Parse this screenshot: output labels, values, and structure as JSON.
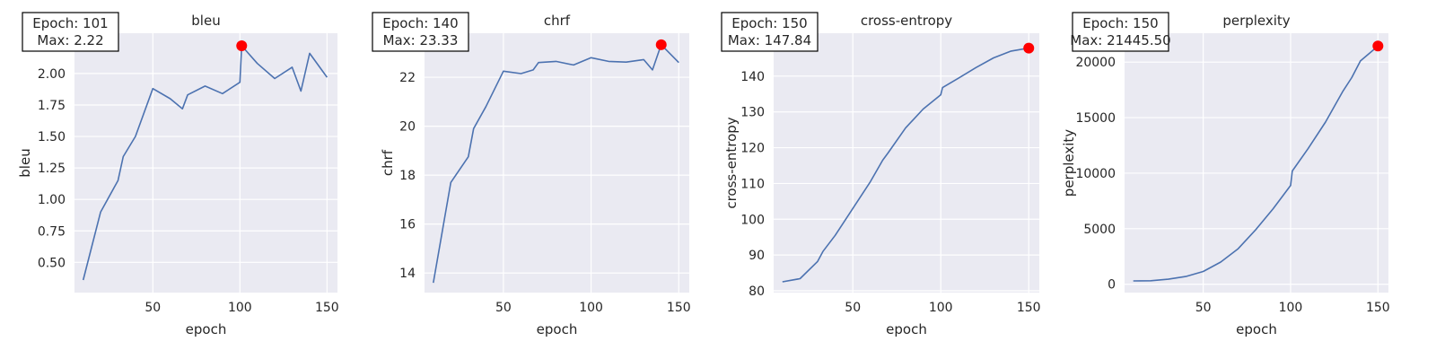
{
  "chart_data": [
    {
      "type": "line",
      "title": "bleu",
      "xlabel": "epoch",
      "ylabel": "bleu",
      "xlim": [
        5,
        156
      ],
      "ylim": [
        0.26,
        2.32
      ],
      "xticks": [
        50,
        100,
        150
      ],
      "yticks": [
        0.5,
        0.75,
        1.0,
        1.25,
        1.5,
        1.75,
        2.0
      ],
      "ytick_labels": [
        "0.50",
        "0.75",
        "1.00",
        "1.25",
        "1.50",
        "1.75",
        "2.00"
      ],
      "grid": true,
      "x": [
        10,
        20,
        30,
        33,
        40,
        50,
        60,
        67,
        70,
        80,
        90,
        100,
        101,
        110,
        120,
        130,
        135,
        140,
        150
      ],
      "y": [
        0.36,
        0.9,
        1.15,
        1.34,
        1.5,
        1.88,
        1.8,
        1.72,
        1.83,
        1.9,
        1.84,
        1.93,
        2.22,
        2.08,
        1.96,
        2.05,
        1.86,
        2.16,
        1.97
      ],
      "max_point": {
        "x": 101,
        "y": 2.22
      },
      "annotation": {
        "line1": "Epoch: 101",
        "line2": "Max: 2.22"
      }
    },
    {
      "type": "line",
      "title": "chrf",
      "xlabel": "epoch",
      "ylabel": "chrf",
      "xlim": [
        5,
        156
      ],
      "ylim": [
        13.2,
        23.8
      ],
      "xticks": [
        50,
        100,
        150
      ],
      "yticks": [
        14,
        16,
        18,
        20,
        22
      ],
      "ytick_labels": [
        "14",
        "16",
        "18",
        "20",
        "22"
      ],
      "grid": true,
      "x": [
        10,
        20,
        30,
        33,
        40,
        50,
        60,
        67,
        70,
        80,
        90,
        100,
        110,
        120,
        130,
        135,
        140,
        150
      ],
      "y": [
        13.6,
        17.7,
        18.75,
        19.9,
        20.8,
        22.25,
        22.15,
        22.3,
        22.6,
        22.65,
        22.5,
        22.8,
        22.65,
        22.62,
        22.72,
        22.3,
        23.33,
        22.6
      ],
      "max_point": {
        "x": 140,
        "y": 23.33
      },
      "annotation": {
        "line1": "Epoch: 140",
        "line2": "Max: 23.33"
      }
    },
    {
      "type": "line",
      "title": "cross-entropy",
      "xlabel": "epoch",
      "ylabel": "cross-entropy",
      "xlim": [
        5,
        156
      ],
      "ylim": [
        79.5,
        152
      ],
      "xticks": [
        50,
        100,
        150
      ],
      "yticks": [
        80,
        90,
        100,
        110,
        120,
        130,
        140
      ],
      "ytick_labels": [
        "80",
        "90",
        "100",
        "110",
        "120",
        "130",
        "140"
      ],
      "grid": true,
      "x": [
        10,
        20,
        30,
        33,
        40,
        50,
        60,
        67,
        70,
        80,
        90,
        100,
        101,
        110,
        120,
        130,
        140,
        150
      ],
      "y": [
        82.5,
        83.4,
        88.2,
        91.0,
        95.5,
        103.0,
        110.5,
        116.5,
        118.5,
        125.5,
        130.8,
        134.8,
        136.8,
        139.4,
        142.4,
        145.1,
        147.0,
        147.84
      ],
      "max_point": {
        "x": 150,
        "y": 147.84
      },
      "annotation": {
        "line1": "Epoch: 150",
        "line2": "Max: 147.84"
      }
    },
    {
      "type": "line",
      "title": "perplexity",
      "xlabel": "epoch",
      "ylabel": "perplexity",
      "xlim": [
        5,
        156
      ],
      "ylim": [
        -750,
        22600
      ],
      "xticks": [
        50,
        100,
        150
      ],
      "yticks": [
        0,
        5000,
        10000,
        15000,
        20000
      ],
      "ytick_labels": [
        "0",
        "5000",
        "10000",
        "15000",
        "20000"
      ],
      "grid": true,
      "x": [
        10,
        20,
        30,
        40,
        50,
        60,
        70,
        80,
        90,
        100,
        101,
        110,
        120,
        130,
        135,
        140,
        150
      ],
      "y": [
        300,
        320,
        450,
        700,
        1150,
        2000,
        3200,
        4900,
        6800,
        8900,
        10200,
        12200,
        14600,
        17400,
        18600,
        20100,
        21445.5
      ],
      "max_point": {
        "x": 150,
        "y": 21445.5
      },
      "annotation": {
        "line1": "Epoch: 150",
        "line2": "Max: 21445.50"
      }
    }
  ],
  "colors": {
    "line": "#4c72b0",
    "max_marker": "#ff0000",
    "plot_background": "#eaeaf2",
    "grid": "#ffffff",
    "annotation_border": "#000000",
    "annotation_background": "#ffffff"
  }
}
